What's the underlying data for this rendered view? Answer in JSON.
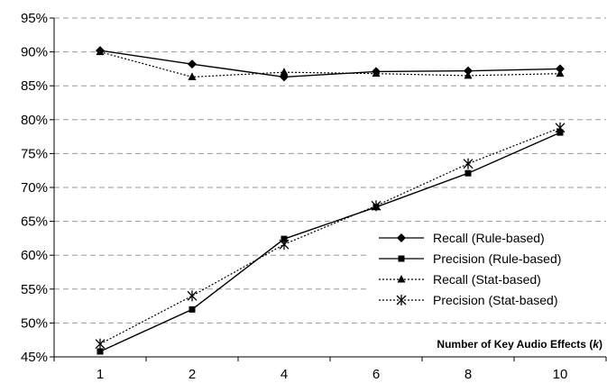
{
  "chart_data": {
    "type": "line",
    "x": [
      1,
      2,
      4,
      6,
      8,
      10
    ],
    "xlabel_parts": [
      "Number of Key Audio Effects (",
      "k",
      ")"
    ],
    "ylabel": "",
    "ylim": [
      45,
      95
    ],
    "ytick_step": 5,
    "ytick_suffix": "%",
    "grid": "horizontal-dashed",
    "legend_position": "right",
    "series": [
      {
        "name": "Recall (Rule-based)",
        "values": [
          90.2,
          88.2,
          86.3,
          87.1,
          87.2,
          87.5
        ],
        "marker": "diamond",
        "line": "solid"
      },
      {
        "name": "Precision (Rule-based)",
        "values": [
          45.8,
          52.0,
          62.4,
          67.1,
          72.1,
          78.1
        ],
        "marker": "square",
        "line": "solid"
      },
      {
        "name": "Recall (Stat-based)",
        "values": [
          90.0,
          86.3,
          87.0,
          86.8,
          86.5,
          86.8
        ],
        "marker": "triangle",
        "line": "dotted"
      },
      {
        "name": "Precision (Stat-based)",
        "values": [
          46.9,
          54.0,
          61.6,
          67.3,
          73.5,
          78.8
        ],
        "marker": "asterisk",
        "line": "dotted"
      }
    ]
  }
}
